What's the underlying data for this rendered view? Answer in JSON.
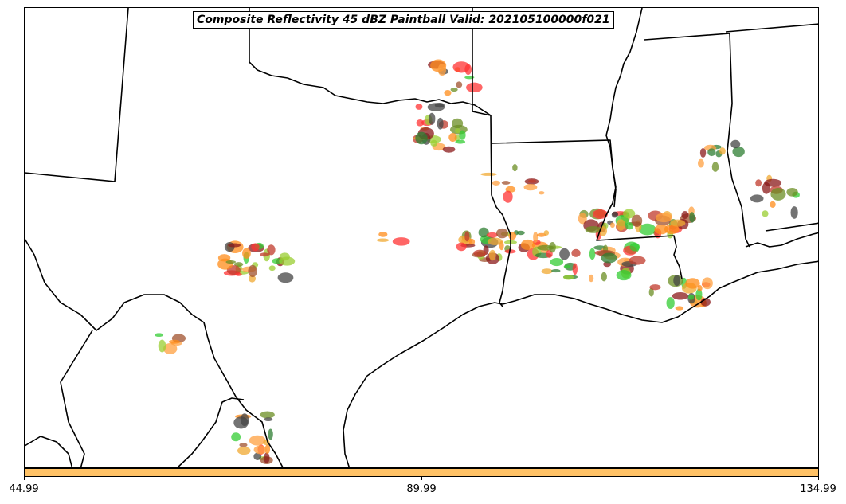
{
  "title": "Composite Reflectivity 45 dBZ Paintball Valid: 202105100000f021",
  "colorbar": {
    "color": "#ffc266",
    "ticks": [
      "44.99",
      "89.99",
      "134.99"
    ]
  },
  "member_colors": [
    "#ff3333",
    "#ff8c1a",
    "#33cc33",
    "#2e7d32",
    "#8b1a1a",
    "#9acd32",
    "#f0a830",
    "#444444",
    "#a0522d",
    "#6b8e23",
    "#c0392b",
    "#ffa040"
  ]
}
